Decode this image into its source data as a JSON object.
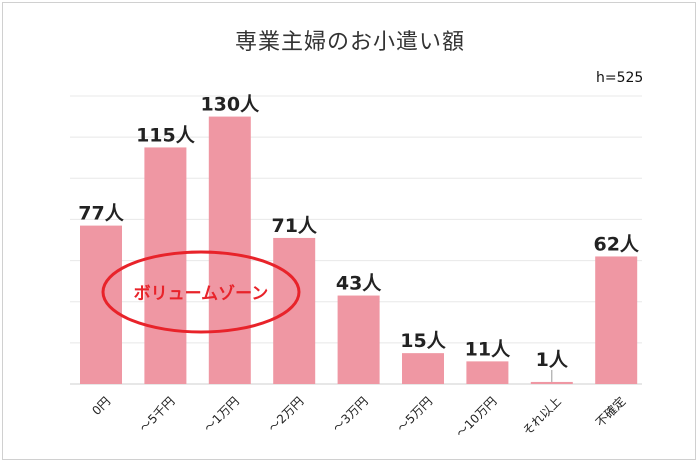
{
  "chart_data": {
    "type": "bar",
    "title": "専業主婦のお小遣い額",
    "subtitle": "h=525",
    "categories": [
      "0円",
      "～5千円",
      "～1万円",
      "～2万円",
      "～3万円",
      "～5万円",
      "～10万円",
      "それ以上",
      "不確定"
    ],
    "values": [
      77,
      115,
      130,
      71,
      43,
      15,
      11,
      1,
      62
    ],
    "data_labels": [
      "77人",
      "115人",
      "130人",
      "71人",
      "43人",
      "15人",
      "11人",
      "1人",
      "62人"
    ],
    "ylim": [
      0,
      140
    ],
    "grid": true,
    "colors": {
      "bar": "#ef97a3",
      "annotation": "#e8232a"
    },
    "annotation": {
      "text": "ボリュームゾーン",
      "style": "red-ellipse"
    }
  }
}
